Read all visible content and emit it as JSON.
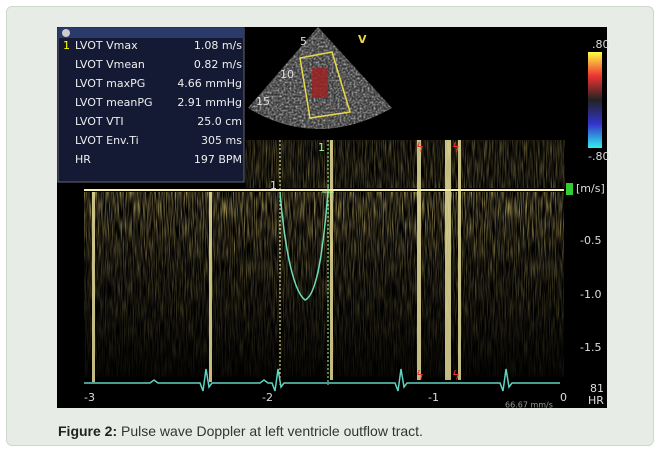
{
  "measurements": [
    {
      "label": "LVOT Vmax",
      "value": "1.08 m/s"
    },
    {
      "label": "LVOT Vmean",
      "value": "0.82 m/s"
    },
    {
      "label": "LVOT maxPG",
      "value": "4.66 mmHg"
    },
    {
      "label": "LVOT meanPG",
      "value": "2.91 mmHg"
    },
    {
      "label": "LVOT VTI",
      "value": "25.0 cm"
    },
    {
      "label": "LVOT Env.Ti",
      "value": "305 ms"
    },
    {
      "label": "HR",
      "value": "197 BPM"
    }
  ],
  "measurement_index": "1",
  "sector": {
    "marker": "V",
    "depths": [
      "5",
      "10",
      "15"
    ]
  },
  "color_scale": {
    "top": ".80",
    "bottom": "-.80"
  },
  "velocity_scale": {
    "unit": "[m/s]",
    "ticks": [
      "-0.5",
      "-1.0",
      "-1.5"
    ]
  },
  "time_axis": {
    "ticks": [
      "-3",
      "-2",
      "-1",
      "0"
    ],
    "sweep": "66.67 mm/s"
  },
  "cursor_labels": [
    "1",
    "1"
  ],
  "heart_rate": {
    "value": "81",
    "label": "HR"
  },
  "caption": {
    "label": "Figure 2:",
    "text": "Pulse wave Doppler at left ventricle outflow tract."
  }
}
